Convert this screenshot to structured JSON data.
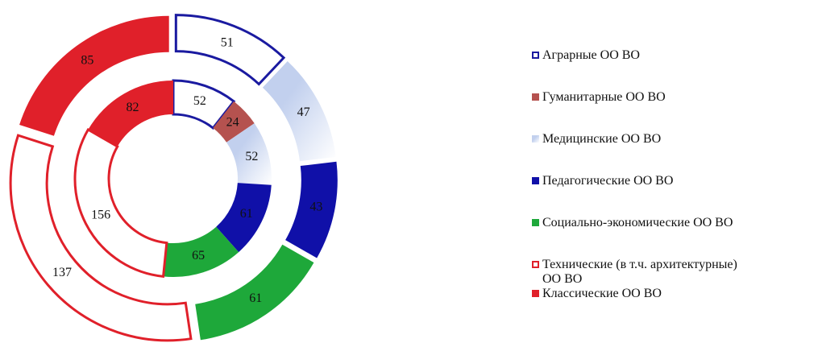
{
  "chart_data": {
    "type": "doughnut",
    "categories": [
      "Аграрные ОО ВО",
      "Гуманитарные ОО ВО",
      "Медицинские ОО ВО",
      "Педагогические ОО ВО",
      "Социально-экономические ОО ВО",
      "Технические (в т.ч. архитектурные) ОО ВО",
      "Классические ОО ВО"
    ],
    "colors": [
      "#1a1aa0",
      "#b5524f",
      "#c2d0ee",
      "#1010a8",
      "#1ea83a",
      "#e0202a",
      "#e0202a"
    ],
    "styles": [
      "outline",
      "solid",
      "gradient",
      "solid",
      "solid",
      "outline",
      "solid"
    ],
    "series": [
      {
        "values": [
          52,
          24,
          52,
          61,
          65,
          156,
          82
        ]
      },
      {
        "values": [
          51,
          null,
          47,
          43,
          61,
          137,
          85
        ]
      }
    ],
    "legend": "right"
  }
}
